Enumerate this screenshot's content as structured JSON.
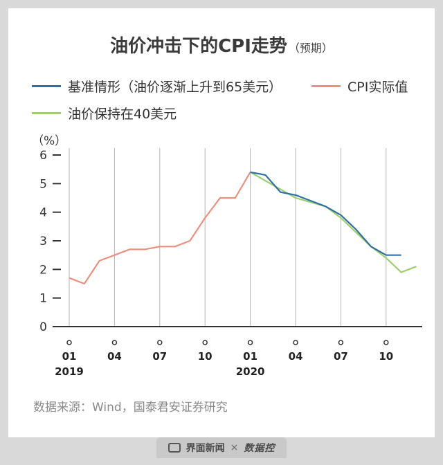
{
  "title": "油价冲击下的CPI走势",
  "subtitle": "（预期）",
  "source": "数据来源：Wind，国泰君安证券研究",
  "footer": {
    "brand": "界面新闻",
    "times": "×",
    "brand2": "数据控"
  },
  "colors": {
    "baseline": "#2e6fa7",
    "actual": "#ec8f7d",
    "oil40": "#9ccf6e",
    "axis": "#333333",
    "grid": "#b3b3b3"
  },
  "chart_data": {
    "type": "line",
    "title": "油价冲击下的CPI走势（预期）",
    "unit_label": "（%）",
    "ylim": [
      0,
      6
    ],
    "yticks": [
      "0",
      "1",
      "2",
      "3",
      "4",
      "5",
      "6"
    ],
    "x": [
      "2019-01",
      "2019-02",
      "2019-03",
      "2019-04",
      "2019-05",
      "2019-06",
      "2019-07",
      "2019-08",
      "2019-09",
      "2019-10",
      "2019-11",
      "2019-12",
      "2020-01",
      "2020-02",
      "2020-03",
      "2020-04",
      "2020-05",
      "2020-06",
      "2020-07",
      "2020-08",
      "2020-09",
      "2020-10",
      "2020-11",
      "2020-12"
    ],
    "x_tick_labels": [
      {
        "x": "2019-01",
        "label": "01",
        "year": "2019"
      },
      {
        "x": "2019-04",
        "label": "04",
        "year": ""
      },
      {
        "x": "2019-07",
        "label": "07",
        "year": ""
      },
      {
        "x": "2019-10",
        "label": "10",
        "year": ""
      },
      {
        "x": "2020-01",
        "label": "01",
        "year": "2020"
      },
      {
        "x": "2020-04",
        "label": "04",
        "year": ""
      },
      {
        "x": "2020-07",
        "label": "07",
        "year": ""
      },
      {
        "x": "2020-10",
        "label": "10",
        "year": ""
      }
    ],
    "grid_x": [
      "2019-01",
      "2019-04",
      "2019-07",
      "2019-10",
      "2020-01",
      "2020-04",
      "2020-07",
      "2020-10"
    ],
    "legend_position": "top",
    "series": [
      {
        "name": "基准情形（油价逐渐上升到65美元）",
        "color": "#2e6fa7",
        "x": [
          "2020-01",
          "2020-02",
          "2020-03",
          "2020-04",
          "2020-05",
          "2020-06",
          "2020-07",
          "2020-08",
          "2020-09",
          "2020-10",
          "2020-11",
          "2020-12"
        ],
        "values": [
          5.4,
          5.3,
          4.7,
          4.6,
          4.4,
          4.2,
          3.9,
          3.4,
          2.8,
          2.5,
          2.5,
          null
        ]
      },
      {
        "name": "CPI实际值",
        "color": "#ec8f7d",
        "x": [
          "2019-01",
          "2019-02",
          "2019-03",
          "2019-04",
          "2019-05",
          "2019-06",
          "2019-07",
          "2019-08",
          "2019-09",
          "2019-10",
          "2019-11",
          "2019-12",
          "2020-01"
        ],
        "values": [
          1.7,
          1.5,
          2.3,
          2.5,
          2.7,
          2.7,
          2.8,
          2.8,
          3.0,
          3.8,
          4.5,
          4.5,
          5.4
        ]
      },
      {
        "name": "油价保持在40美元",
        "color": "#9ccf6e",
        "x": [
          "2020-01",
          "2020-02",
          "2020-03",
          "2020-04",
          "2020-05",
          "2020-06",
          "2020-07",
          "2020-08",
          "2020-09",
          "2020-10",
          "2020-11",
          "2020-12"
        ],
        "values": [
          5.4,
          5.1,
          4.8,
          4.5,
          4.35,
          4.2,
          3.8,
          3.3,
          2.8,
          2.4,
          1.9,
          2.1
        ]
      }
    ]
  }
}
